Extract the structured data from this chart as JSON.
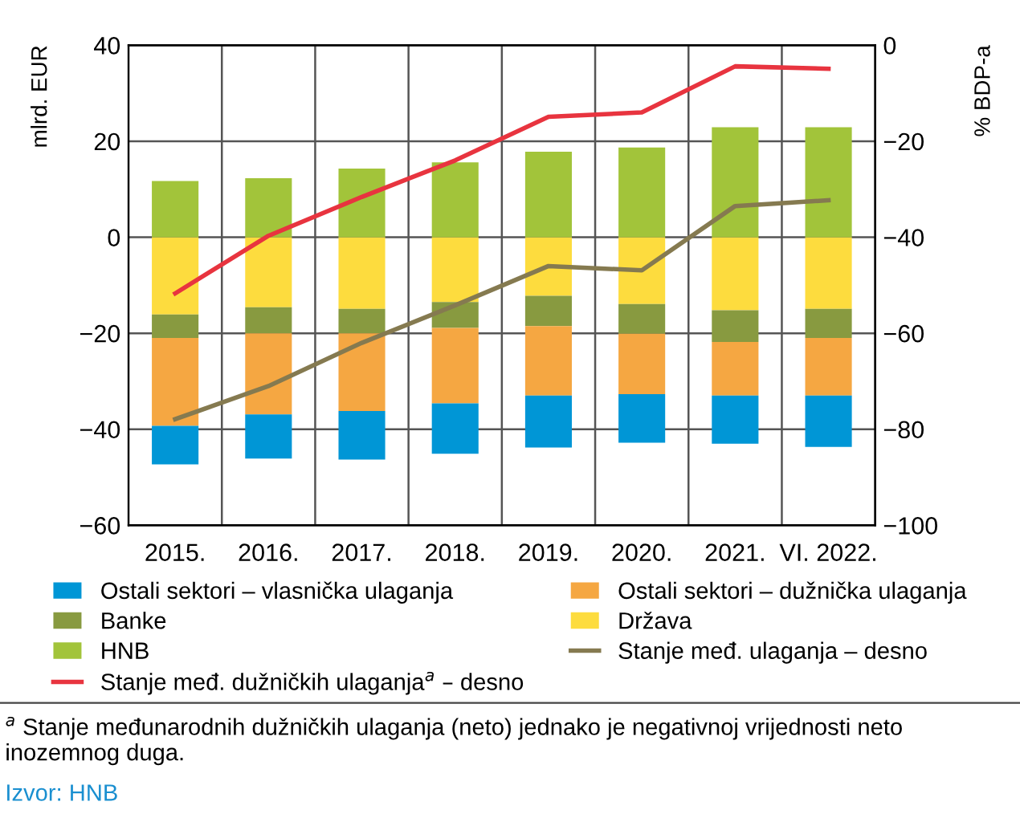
{
  "chart_data": {
    "type": "bar",
    "stacked": true,
    "categories": [
      "2015.",
      "2016.",
      "2017.",
      "2018.",
      "2019.",
      "2020.",
      "2021.",
      "VI. 2022."
    ],
    "ylabel": "mlrd. EUR",
    "y2label": "% BDP-a",
    "ylim": [
      -60,
      40
    ],
    "yticks": [
      {
        "value": -60,
        "label": "−60"
      },
      {
        "value": -40,
        "label": "−40"
      },
      {
        "value": -20,
        "label": "−20"
      },
      0,
      20,
      40
    ],
    "y2lim": [
      -100,
      0
    ],
    "y2ticks": [
      {
        "value": -100,
        "label": "−100"
      },
      {
        "value": -80,
        "label": "−80"
      },
      {
        "value": -60,
        "label": "−60"
      },
      {
        "value": -40,
        "label": "−40"
      },
      {
        "value": -20,
        "label": "−20"
      },
      0
    ],
    "grid": true,
    "legend": "bottom",
    "series": [
      {
        "name": "Država",
        "color": "#fddc3e",
        "values": [
          -16.1,
          -14.6,
          -14.9,
          -13.5,
          -12.2,
          -13.9,
          -15.2,
          -14.9
        ]
      },
      {
        "name": "Banke",
        "color": "#889a40",
        "values": [
          -4.9,
          -5.4,
          -5.1,
          -5.4,
          -6.3,
          -6.2,
          -6.6,
          -6.1
        ]
      },
      {
        "name": "Ostali sektori – dužnička ulaganja",
        "color": "#f5a742",
        "values": [
          -18.3,
          -16.9,
          -16.2,
          -15.7,
          -14.5,
          -12.6,
          -11.2,
          -12.0
        ]
      },
      {
        "name": "Ostali sektori – vlasnička ulaganja",
        "color": "#0096d6",
        "values": [
          -8.0,
          -9.2,
          -10.1,
          -10.5,
          -10.8,
          -10.1,
          -10.0,
          -10.7
        ]
      },
      {
        "name": "HNB",
        "color": "#a2c43a",
        "values": [
          11.7,
          12.3,
          14.3,
          15.6,
          17.8,
          18.7,
          22.9,
          22.9
        ]
      },
      {
        "name": "Stanje međ. ulaganja – desno",
        "type": "line",
        "axis": "y2",
        "color": "#857a50",
        "values": [
          -77.9,
          -71.0,
          -62.0,
          -54.2,
          -46.0,
          -46.9,
          -33.5,
          -32.3
        ]
      },
      {
        "name": "Stanje međ. dužničkih ulaganja$^{a}$ – desno",
        "type": "line",
        "axis": "y2",
        "color": "#e8343f",
        "values": [
          -51.7,
          -39.7,
          -31.6,
          -24.0,
          -14.9,
          -14.0,
          -4.4,
          -4.9
        ]
      }
    ],
    "annotations": [
      "$^{a}$ Stanje međunarodnih dužničkih ulaganja (neto) jednako je negativnoj vrijednosti neto inozemnog duga.",
      "Izvor: HNB"
    ]
  }
}
